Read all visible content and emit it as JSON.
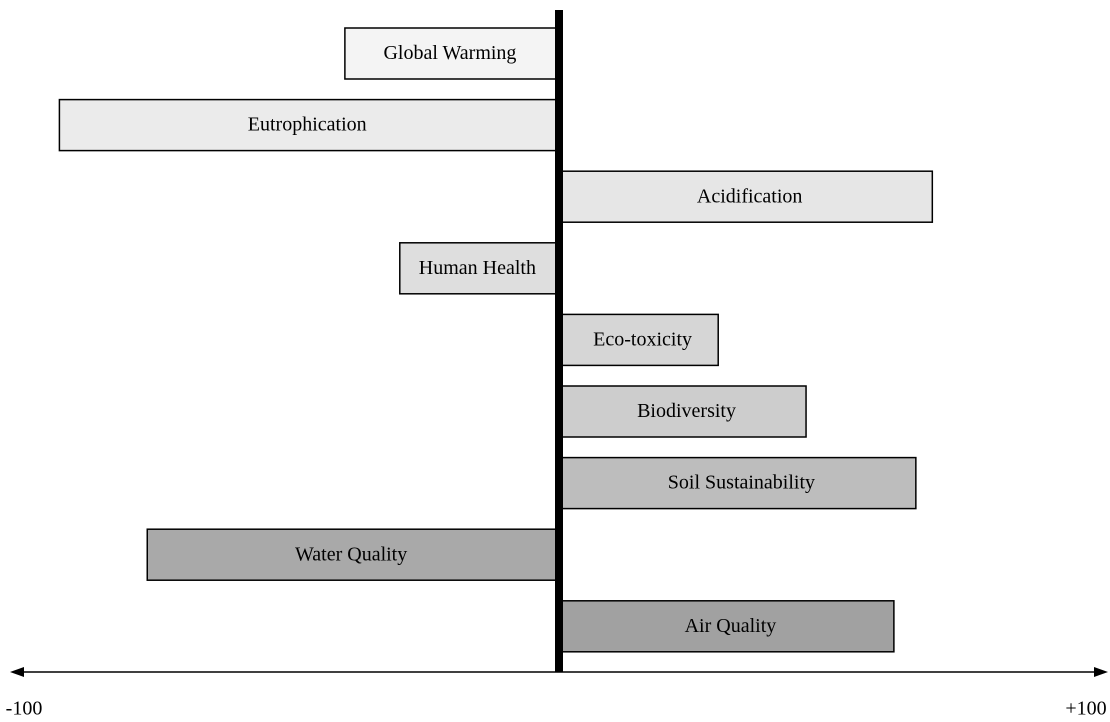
{
  "chart_data": {
    "type": "bar",
    "orientation": "horizontal",
    "categories": [
      "Global Warming",
      "Eutrophication",
      "Acidification",
      "Human Health",
      "Eco-toxicity",
      "Biodiversity",
      "Soil Sustainability",
      "Water Quality",
      "Air Quality"
    ],
    "values": [
      -39,
      -91,
      68,
      -29,
      29,
      45,
      65,
      -75,
      61
    ],
    "colors": [
      "#f4f4f4",
      "#ebebeb",
      "#e6e6e6",
      "#dedede",
      "#d6d6d6",
      "#cdcdcd",
      "#bdbdbd",
      "#a9a9a9",
      "#a1a1a1"
    ],
    "xlim": [
      -100,
      100
    ],
    "xticks": [
      -100,
      {
        "value": 100,
        "label": "+100"
      }
    ]
  }
}
